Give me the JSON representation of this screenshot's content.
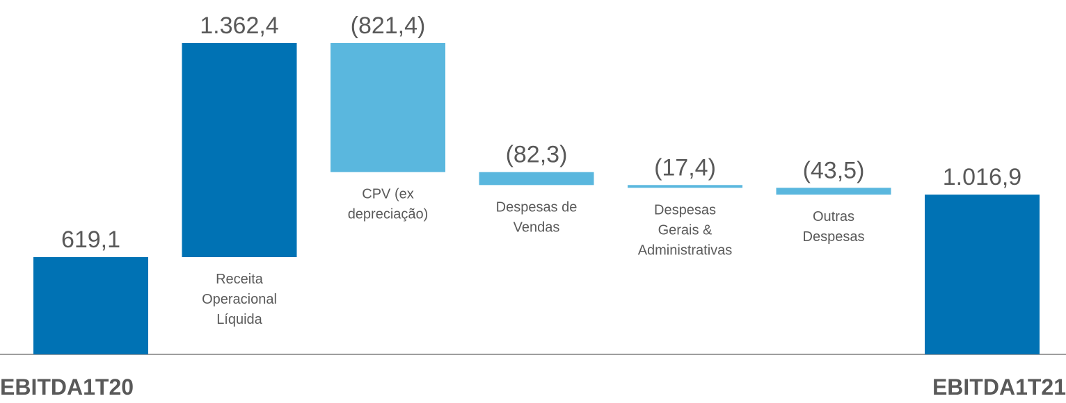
{
  "chart_data": {
    "type": "waterfall",
    "categories": [
      [
        "EBITDA1T20"
      ],
      [
        "Receita",
        "Operacional",
        "Líquida"
      ],
      [
        "CPV (ex",
        "depreciação)"
      ],
      [
        "Despesas de",
        "Vendas"
      ],
      [
        "Despesas",
        "Gerais &",
        "Administrativas"
      ],
      [
        "Outras",
        "Despesas"
      ],
      [
        "EBITDA1T21"
      ]
    ],
    "measure": [
      "total",
      "increase",
      "decrease",
      "decrease",
      "decrease",
      "decrease",
      "total"
    ],
    "values": [
      619.1,
      1362.4,
      -821.4,
      -82.3,
      -17.4,
      -43.5,
      1016.9
    ],
    "value_labels": [
      "619,1",
      "1.362,4",
      "(821,4)",
      "(82,3)",
      "(17,4)",
      "(43,5)",
      "1.016,9"
    ],
    "colors": {
      "total": "#0072b4",
      "increase": "#0072b4",
      "decrease": "#5ab7de"
    }
  }
}
